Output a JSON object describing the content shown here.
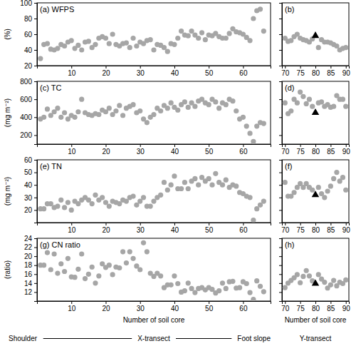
{
  "chart_data": [
    {
      "type": "scatter",
      "title": "(a) WFPS",
      "y_label": "(%)",
      "tick_labels": true,
      "xlim": [
        0,
        68
      ],
      "xticks": [
        10,
        20,
        30,
        40,
        50,
        60
      ],
      "ylim": [
        20,
        100
      ],
      "yticks": [
        20,
        40,
        60,
        80,
        100
      ],
      "series": [
        {
          "color": "#a6a6a6",
          "marker": "circle",
          "x": [
            1,
            2,
            3,
            4,
            5,
            6,
            7,
            8,
            9,
            10,
            11,
            12,
            13,
            14,
            15,
            16,
            17,
            18,
            19,
            20,
            21,
            22,
            23,
            24,
            25,
            26,
            27,
            28,
            29,
            30,
            31,
            32,
            33,
            34,
            35,
            36,
            37,
            38,
            39,
            40,
            41,
            42,
            43,
            44,
            45,
            46,
            47,
            48,
            49,
            50,
            51,
            52,
            53,
            54,
            55,
            56,
            57,
            58,
            59,
            60,
            61,
            62,
            63,
            64,
            65,
            66
          ],
          "values": [
            29,
            47,
            48,
            41,
            40,
            42,
            47,
            45,
            50,
            52,
            42,
            46,
            40,
            50,
            51,
            43,
            47,
            55,
            57,
            55,
            48,
            60,
            47,
            45,
            48,
            49,
            43,
            55,
            45,
            50,
            48,
            52,
            53,
            40,
            47,
            46,
            43,
            38,
            48,
            47,
            55,
            64,
            59,
            58,
            64,
            59,
            55,
            62,
            53,
            59,
            58,
            61,
            57,
            55,
            55,
            61,
            67,
            63,
            62,
            60,
            56,
            52,
            80,
            90,
            92,
            64
          ]
        }
      ]
    },
    {
      "type": "scatter",
      "title": "(b)",
      "tick_labels": "x",
      "xlim": [
        69,
        91
      ],
      "xticks": [
        70,
        75,
        80,
        85,
        90
      ],
      "ylim": [
        20,
        100
      ],
      "yticks": [
        20,
        40,
        60,
        80,
        100
      ],
      "series": [
        {
          "color": "#a6a6a6",
          "marker": "circle",
          "x": [
            70,
            71,
            72,
            73,
            74,
            75,
            76,
            77,
            78,
            79,
            81,
            82,
            83,
            84,
            85,
            86,
            87,
            88,
            89,
            90
          ],
          "values": [
            55,
            51,
            52,
            57,
            60,
            55,
            53,
            52,
            50,
            54,
            43,
            53,
            50,
            50,
            49,
            47,
            45,
            40,
            42,
            43
          ]
        },
        {
          "color": "#000000",
          "marker": "triangle",
          "x": [
            80
          ],
          "values": [
            58
          ]
        }
      ]
    },
    {
      "type": "scatter",
      "title": "(c) TC",
      "y_label": "(mg m⁻²)",
      "tick_labels": true,
      "xlim": [
        0,
        68
      ],
      "xticks": [
        10,
        20,
        30,
        40,
        50,
        60
      ],
      "ylim": [
        100,
        800
      ],
      "yticks": [
        200,
        400,
        600,
        800
      ],
      "series": [
        {
          "color": "#a6a6a6",
          "marker": "circle",
          "x": [
            1,
            2,
            3,
            4,
            5,
            6,
            7,
            8,
            9,
            10,
            11,
            12,
            13,
            14,
            15,
            16,
            17,
            18,
            19,
            20,
            21,
            22,
            23,
            24,
            25,
            26,
            27,
            28,
            29,
            30,
            31,
            32,
            33,
            34,
            35,
            36,
            37,
            38,
            39,
            40,
            41,
            42,
            43,
            44,
            45,
            46,
            47,
            48,
            49,
            50,
            51,
            52,
            53,
            54,
            55,
            56,
            57,
            58,
            59,
            60,
            61,
            62,
            63,
            64,
            65,
            66
          ],
          "values": [
            380,
            400,
            490,
            420,
            460,
            500,
            400,
            450,
            380,
            420,
            400,
            460,
            600,
            450,
            430,
            420,
            440,
            430,
            480,
            460,
            500,
            430,
            470,
            530,
            420,
            500,
            520,
            540,
            450,
            470,
            380,
            340,
            400,
            430,
            500,
            470,
            530,
            500,
            560,
            510,
            480,
            540,
            570,
            510,
            560,
            520,
            580,
            600,
            560,
            540,
            600,
            570,
            500,
            560,
            540,
            600,
            580,
            470,
            380,
            400,
            300,
            220,
            130,
            300,
            340,
            330
          ]
        }
      ]
    },
    {
      "type": "scatter",
      "title": "(d)",
      "tick_labels": "x",
      "xlim": [
        69,
        91
      ],
      "xticks": [
        70,
        75,
        80,
        85,
        90
      ],
      "ylim": [
        100,
        800
      ],
      "yticks": [
        200,
        400,
        600,
        800
      ],
      "series": [
        {
          "color": "#a6a6a6",
          "marker": "circle",
          "x": [
            70,
            71,
            72,
            73,
            74,
            75,
            76,
            77,
            78,
            79,
            81,
            82,
            83,
            84,
            85,
            86,
            87,
            88,
            89,
            90
          ],
          "values": [
            560,
            440,
            470,
            600,
            560,
            680,
            630,
            550,
            600,
            520,
            560,
            570,
            520,
            540,
            510,
            520,
            640,
            600,
            600,
            520
          ]
        },
        {
          "color": "#000000",
          "marker": "triangle",
          "x": [
            80
          ],
          "values": [
            450
          ]
        }
      ]
    },
    {
      "type": "scatter",
      "title": "(e) TN",
      "y_label": "(mg m⁻²)",
      "tick_labels": true,
      "xlim": [
        0,
        68
      ],
      "xticks": [
        10,
        20,
        30,
        40,
        50,
        60
      ],
      "ylim": [
        10,
        60
      ],
      "yticks": [
        20,
        30,
        40,
        50,
        60
      ],
      "series": [
        {
          "color": "#a6a6a6",
          "marker": "circle",
          "x": [
            1,
            2,
            3,
            4,
            5,
            6,
            7,
            8,
            9,
            10,
            11,
            12,
            13,
            14,
            15,
            16,
            17,
            18,
            19,
            20,
            21,
            22,
            23,
            24,
            25,
            26,
            27,
            28,
            29,
            30,
            31,
            32,
            33,
            34,
            35,
            36,
            37,
            38,
            39,
            40,
            41,
            42,
            43,
            44,
            45,
            46,
            47,
            48,
            49,
            50,
            51,
            52,
            53,
            54,
            55,
            56,
            57,
            58,
            59,
            60,
            61,
            62,
            63,
            64,
            65,
            66
          ],
          "values": [
            21,
            21,
            25,
            25,
            22,
            23,
            28,
            22,
            26,
            20,
            27,
            25,
            28,
            30,
            28,
            25,
            32,
            28,
            30,
            26,
            23,
            27,
            26,
            25,
            28,
            27,
            30,
            31,
            24,
            27,
            30,
            23,
            23,
            27,
            30,
            32,
            42,
            36,
            40,
            47,
            37,
            37,
            42,
            37,
            43,
            45,
            40,
            46,
            43,
            45,
            40,
            49,
            42,
            40,
            44,
            38,
            40,
            39,
            34,
            33,
            31,
            30,
            12,
            21,
            24,
            27
          ]
        }
      ]
    },
    {
      "type": "scatter",
      "title": "(f)",
      "tick_labels": "x",
      "xlim": [
        69,
        91
      ],
      "xticks": [
        70,
        75,
        80,
        85,
        90
      ],
      "ylim": [
        10,
        60
      ],
      "yticks": [
        20,
        30,
        40,
        50,
        60
      ],
      "series": [
        {
          "color": "#a6a6a6",
          "marker": "circle",
          "x": [
            70,
            71,
            72,
            73,
            74,
            75,
            76,
            77,
            78,
            79,
            81,
            82,
            83,
            84,
            85,
            86,
            87,
            88,
            89,
            90
          ],
          "values": [
            42,
            31,
            31,
            34,
            38,
            41,
            38,
            41,
            38,
            36,
            38,
            33,
            30,
            35,
            39,
            45,
            50,
            43,
            46,
            36
          ]
        },
        {
          "color": "#000000",
          "marker": "triangle",
          "x": [
            80
          ],
          "values": [
            32
          ]
        }
      ]
    },
    {
      "type": "scatter",
      "title": "(g) CN ratio",
      "y_label": "(ratio)",
      "x_label": "Number of soil core",
      "tick_labels": true,
      "annotations": [
        "Shoulder",
        "X-transect",
        "Foot slope"
      ],
      "xlim": [
        0,
        68
      ],
      "xticks": [
        10,
        20,
        30,
        40,
        50,
        60
      ],
      "ylim": [
        10,
        24
      ],
      "yticks": [
        12,
        14,
        16,
        18,
        20,
        22,
        24
      ],
      "series": [
        {
          "color": "#a6a6a6",
          "marker": "circle",
          "x": [
            1,
            2,
            3,
            4,
            5,
            6,
            7,
            8,
            9,
            10,
            11,
            12,
            13,
            14,
            15,
            16,
            17,
            18,
            19,
            20,
            21,
            22,
            23,
            24,
            25,
            26,
            27,
            28,
            29,
            30,
            31,
            32,
            33,
            34,
            35,
            36,
            37,
            38,
            39,
            40,
            41,
            42,
            43,
            44,
            45,
            46,
            47,
            48,
            49,
            50,
            51,
            52,
            53,
            54,
            55,
            56,
            57,
            58,
            59,
            60,
            61,
            62,
            63,
            64,
            65,
            66
          ],
          "values": [
            18,
            18,
            20.8,
            17,
            20.5,
            16.2,
            18.3,
            16.6,
            19.5,
            15.4,
            15.3,
            17.1,
            20.5,
            15,
            16,
            17.6,
            14,
            15.6,
            18.3,
            17.5,
            18,
            15.9,
            17.6,
            17.4,
            21,
            18.5,
            21,
            19.5,
            17.8,
            17,
            23,
            21,
            16.2,
            15.5,
            16.2,
            15.6,
            13,
            13.6,
            13.6,
            15.6,
            13.9,
            12,
            12.3,
            14,
            12.8,
            11.9,
            12.8,
            13,
            12.5,
            13,
            12.6,
            11.8,
            12.3,
            14,
            12.8,
            14.3,
            14.4,
            12.9,
            13,
            14.3,
            13.9,
            11.9,
            10.4,
            14.5,
            13.3,
            12.1
          ]
        }
      ]
    },
    {
      "type": "scatter",
      "title": "(h)",
      "x_label": "Number of soil core",
      "tick_labels": "x",
      "annotations": [
        "Y-transect"
      ],
      "xlim": [
        69,
        91
      ],
      "xticks": [
        70,
        75,
        80,
        85,
        90
      ],
      "ylim": [
        10,
        24
      ],
      "yticks": [
        12,
        14,
        16,
        18,
        20,
        22,
        24
      ],
      "series": [
        {
          "color": "#a6a6a6",
          "marker": "circle",
          "x": [
            70,
            71,
            72,
            73,
            74,
            75,
            76,
            77,
            78,
            79,
            81,
            82,
            83,
            84,
            85,
            86,
            87,
            88,
            89,
            90
          ],
          "values": [
            13,
            14,
            14.6,
            15.2,
            15.9,
            14.1,
            15.5,
            16.8,
            15.6,
            14.5,
            15.9,
            14.9,
            14.2,
            12.9,
            13.6,
            14.6,
            13.4,
            14.2,
            13.9,
            14.7
          ]
        },
        {
          "color": "#000000",
          "marker": "triangle",
          "x": [
            80
          ],
          "values": [
            13.9
          ]
        }
      ]
    }
  ]
}
